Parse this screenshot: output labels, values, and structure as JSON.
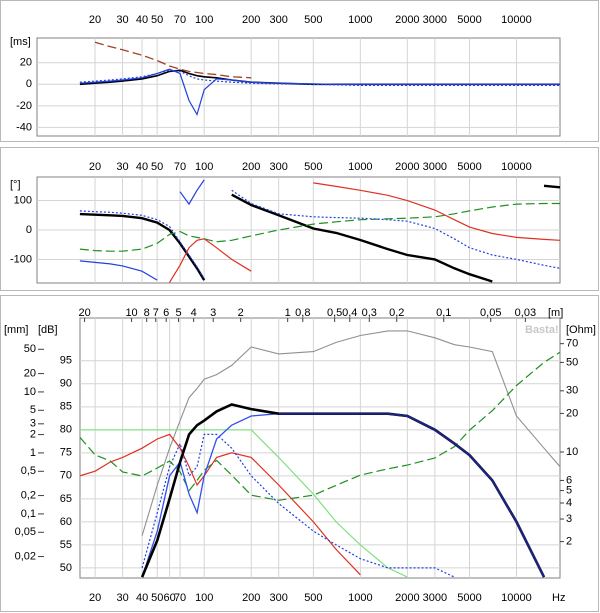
{
  "chart_data": [
    {
      "type": "line",
      "x_scale": "log",
      "y_label": "[ms]",
      "xlim": [
        8.5,
        19000
      ],
      "ylim": [
        -48,
        43
      ],
      "xticks": [
        20,
        30,
        40,
        50,
        70,
        100,
        200,
        300,
        500,
        1000,
        2000,
        3000,
        5000,
        10000
      ],
      "yticks": [
        20,
        0,
        -20,
        -40
      ],
      "grid": true,
      "x": [
        16,
        20,
        25,
        30,
        40,
        50,
        60,
        70,
        80,
        90,
        100,
        120,
        150,
        200,
        300,
        500,
        700,
        1000,
        1500,
        2000,
        3000,
        4000,
        5000,
        7000,
        10000,
        15000,
        19000
      ],
      "series": [
        {
          "color": "#a0402a",
          "dash": "dashed",
          "width": 1.3,
          "values": [
            null,
            39,
            35,
            32,
            27,
            22,
            17,
            14,
            12,
            11,
            10,
            9,
            7,
            6,
            null,
            null,
            null,
            null,
            null,
            null,
            null,
            null,
            null,
            null,
            null,
            null,
            null
          ]
        },
        {
          "color": "#000000",
          "dash": "solid",
          "width": 1.6,
          "values": [
            0,
            1,
            2,
            3,
            5,
            8,
            12,
            13,
            10,
            8,
            7,
            6,
            4,
            2,
            1,
            0,
            0,
            0,
            0,
            0,
            0,
            0,
            0,
            0,
            0,
            0,
            0
          ]
        },
        {
          "color": "#2040e0",
          "dash": "solid",
          "width": 1.2,
          "values": [
            1,
            2,
            3,
            4,
            6,
            10,
            14,
            10,
            -15,
            -28,
            -5,
            5,
            4,
            2,
            1,
            0.5,
            0,
            0,
            0,
            0,
            0,
            0,
            0,
            0,
            0,
            0,
            0
          ]
        },
        {
          "color": "#2040e0",
          "dash": "dotted",
          "width": 1.2,
          "values": [
            2,
            3,
            4,
            5,
            7,
            10,
            13,
            12,
            8,
            5,
            4,
            3,
            2,
            1,
            0.5,
            0,
            -0.5,
            -1,
            -1,
            -1,
            -1,
            -1,
            -1,
            -1,
            -1,
            -1,
            -1
          ]
        }
      ]
    },
    {
      "type": "line",
      "x_scale": "log",
      "y_label": "[°]",
      "xlim": [
        8.5,
        19000
      ],
      "ylim": [
        -180,
        180
      ],
      "xticks": [
        20,
        30,
        40,
        50,
        70,
        100,
        200,
        300,
        500,
        1000,
        2000,
        3000,
        5000,
        10000
      ],
      "yticks": [
        100,
        0,
        -100
      ],
      "grid": true,
      "x": [
        16,
        20,
        25,
        30,
        40,
        50,
        60,
        70,
        80,
        90,
        100,
        120,
        150,
        200,
        300,
        500,
        700,
        1000,
        1500,
        2000,
        3000,
        4000,
        5000,
        7000,
        10000,
        15000,
        19000
      ],
      "series": [
        {
          "color": "#000000",
          "dash": "solid",
          "width": 2.4,
          "values": [
            54,
            52,
            50,
            48,
            40,
            25,
            0,
            -45,
            -90,
            -130,
            -170,
            null,
            120,
            85,
            50,
            5,
            -10,
            -34,
            -65,
            -85,
            -100,
            -130,
            -150,
            -175,
            null,
            150,
            145
          ]
        },
        {
          "color": "#e03020",
          "dash": "solid",
          "width": 1.2,
          "values": [
            null,
            null,
            null,
            null,
            null,
            null,
            -178,
            -120,
            -60,
            -35,
            -30,
            -60,
            -100,
            -140,
            null,
            160,
            148,
            135,
            118,
            100,
            68,
            35,
            10,
            -12,
            -25,
            -32,
            -35
          ]
        },
        {
          "color": "#2040e0",
          "dash": "solid",
          "width": 1.2,
          "values": [
            -105,
            -110,
            -115,
            -122,
            -140,
            -170,
            null,
            130,
            88,
            135,
            170,
            null,
            null,
            null,
            null,
            null,
            null,
            null,
            null,
            null,
            null,
            null,
            null,
            null,
            null,
            null,
            null
          ]
        },
        {
          "color": "#209020",
          "dash": "dashed",
          "width": 1.2,
          "values": [
            -65,
            -70,
            -72,
            -72,
            -65,
            -45,
            -15,
            -5,
            -20,
            -25,
            -30,
            -40,
            -35,
            -20,
            0,
            20,
            28,
            35,
            38,
            40,
            45,
            55,
            65,
            78,
            88,
            90,
            90
          ]
        },
        {
          "color": "#2040e0",
          "dash": "dotted",
          "width": 1.2,
          "values": [
            65,
            62,
            60,
            57,
            50,
            35,
            12,
            -40,
            -85,
            -125,
            -165,
            null,
            135,
            90,
            55,
            45,
            42,
            40,
            35,
            30,
            5,
            -30,
            -60,
            -85,
            -100,
            -120,
            -130
          ]
        }
      ]
    },
    {
      "type": "line",
      "x_scale": "log",
      "y_label": "[dB]",
      "y2_label": "[Ohm]",
      "y3_label": "[mm]",
      "x_label": "Hz",
      "x2_label": "[m]",
      "watermark": "Basta!",
      "xlim": [
        16,
        19000
      ],
      "ylim": [
        47.8,
        104.3
      ],
      "y2lim": [
        1.04,
        111
      ],
      "y2_scale": "log",
      "y3lim": [
        0.0089,
        163
      ],
      "y3_scale": "log",
      "x2lim": [
        21.4,
        0.018
      ],
      "x2_scale": "log",
      "xticks": [
        20,
        30,
        40,
        50,
        60,
        70,
        100,
        200,
        300,
        500,
        1000,
        2000,
        3000,
        5000,
        10000
      ],
      "x2ticks": [
        20,
        10,
        8,
        7,
        6,
        5,
        4,
        3,
        2,
        1,
        {
          "value": 0.8,
          "label": "0,8"
        },
        {
          "value": 0.5,
          "label": "0,5"
        },
        {
          "value": 0.4,
          "label": "0,4"
        },
        {
          "value": 0.3,
          "label": "0,3"
        },
        {
          "value": 0.2,
          "label": "0,2"
        },
        {
          "value": 0.1,
          "label": "0,1"
        },
        {
          "value": 0.05,
          "label": "0,05"
        },
        {
          "value": 0.03,
          "label": "0,03"
        }
      ],
      "yticks": [
        95,
        90,
        85,
        80,
        75,
        70,
        65,
        60,
        55,
        50
      ],
      "y2ticks": [
        70,
        50,
        30,
        20,
        10,
        6,
        5,
        4,
        3,
        2
      ],
      "y3ticks": [
        50,
        20,
        10,
        5,
        3,
        2,
        1,
        {
          "value": 0.5,
          "label": "0,5"
        },
        {
          "value": 0.2,
          "label": "0,2"
        },
        {
          "value": 0.1,
          "label": "0,1"
        },
        {
          "value": 0.05,
          "label": "0,05"
        },
        {
          "value": 0.02,
          "label": "0,02"
        }
      ],
      "grid": true,
      "x": [
        16,
        20,
        25,
        30,
        40,
        50,
        60,
        70,
        80,
        90,
        100,
        120,
        150,
        200,
        300,
        500,
        700,
        1000,
        1500,
        2000,
        3000,
        4000,
        5000,
        7000,
        10000,
        15000,
        19000
      ],
      "series": [
        {
          "color": "#909090",
          "dash": "solid",
          "width": 1.1,
          "values": [
            null,
            null,
            null,
            null,
            57,
            68,
            76,
            82,
            87,
            89,
            91,
            92,
            94,
            98,
            96.5,
            97,
            99,
            100.5,
            101.5,
            101.5,
            100,
            98.5,
            98,
            97,
            83,
            76,
            72
          ]
        },
        {
          "color": "#80e080",
          "dash": "solid",
          "width": 1.2,
          "values": [
            80,
            80,
            80,
            80,
            80,
            80,
            80,
            80,
            80,
            80,
            80,
            80,
            80,
            80,
            74,
            66,
            60,
            55,
            50,
            48,
            null,
            null,
            null,
            null,
            null,
            null,
            null
          ]
        },
        {
          "color": "#e03020",
          "dash": "solid",
          "width": 1.2,
          "values": [
            70,
            71,
            73,
            74,
            76,
            78,
            79,
            76,
            72,
            68,
            70,
            74,
            75,
            74,
            68,
            60,
            54,
            48.5,
            null,
            null,
            null,
            null,
            null,
            null,
            null,
            null,
            null
          ]
        },
        {
          "color": "#2040e0",
          "dash": "dotted",
          "width": 1.2,
          "values": [
            null,
            null,
            null,
            null,
            50,
            62,
            72,
            77,
            70,
            72,
            79,
            79,
            76,
            70,
            64,
            58,
            55,
            52,
            50,
            50,
            50,
            48,
            null,
            null,
            null,
            null,
            null
          ]
        },
        {
          "color": "#209020",
          "dash": "dashed",
          "width": 1.2,
          "axis": "y2",
          "values": [
            13,
            9.5,
            8.5,
            7,
            6.5,
            7.5,
            8.5,
            7,
            5,
            6,
            7.2,
            8.6,
            6.6,
            4.6,
            4.2,
            4.6,
            5.5,
            6.6,
            7.4,
            7.9,
            9,
            11,
            14.8,
            21,
            33,
            50,
            60
          ]
        },
        {
          "color": "#3050f0",
          "dash": "solid",
          "width": 1.3,
          "values": [
            null,
            null,
            null,
            null,
            48,
            58,
            70,
            73,
            66,
            62,
            70,
            78,
            81,
            83,
            83.5,
            null,
            null,
            null,
            null,
            null,
            null,
            null,
            null,
            null,
            null,
            null,
            null
          ]
        },
        {
          "color": "#000000",
          "dash": "solid",
          "width": 2.6,
          "values": [
            null,
            null,
            null,
            null,
            48,
            56,
            65,
            73,
            79,
            81,
            82,
            84,
            85.5,
            84.5,
            83.5,
            83.5,
            83.5,
            83.5,
            83.5,
            83,
            80,
            77,
            74.5,
            69,
            60,
            48,
            null
          ]
        },
        {
          "color": "#1a237e",
          "dash": "solid",
          "width": 2.2,
          "values": [
            null,
            null,
            null,
            null,
            null,
            null,
            null,
            null,
            null,
            null,
            null,
            null,
            null,
            null,
            83.5,
            83.5,
            83.5,
            83.5,
            83.5,
            83,
            80,
            77,
            74.5,
            69,
            60,
            48,
            null
          ]
        }
      ]
    }
  ]
}
